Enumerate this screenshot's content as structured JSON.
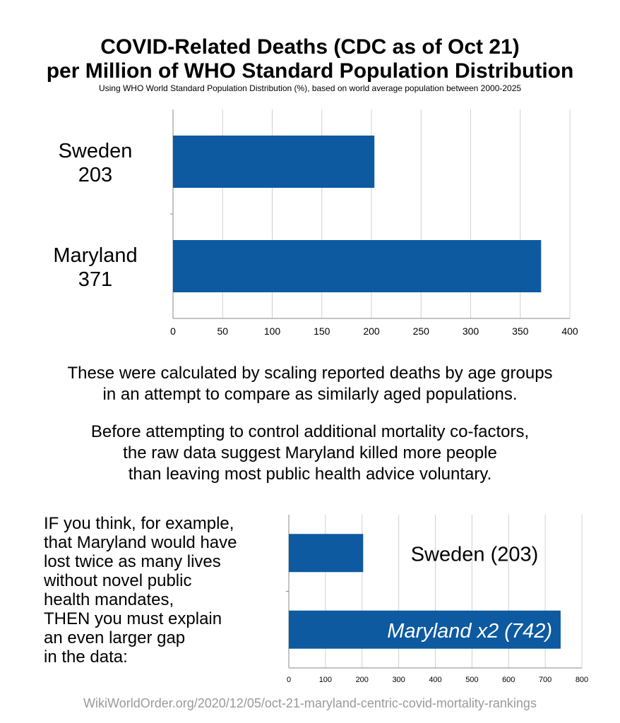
{
  "title_line1": "COVID-Related Deaths (CDC as of Oct 21)",
  "title_line2": "per Million of WHO Standard Population Distribution",
  "subtitle": "Using WHO World Standard Population Distribution (%), based on world average population between 2000-2025",
  "paragraph1": [
    "These were calculated by scaling reported deaths by age groups",
    "in an attempt to compare as similarly aged populations."
  ],
  "paragraph2": [
    "Before attempting to control additional mortality co-factors,",
    "the raw data suggest Maryland killed more people",
    "than leaving most public health advice voluntary."
  ],
  "left_note": [
    "IF you think, for example,",
    "that Maryland would have",
    "lost twice as many lives",
    "without novel public",
    "health mandates,",
    "THEN you must explain",
    "an even larger gap",
    "in the data:"
  ],
  "footer": "WikiWorldOrder.org/2020/12/05/oct-21-maryland-centric-covid-mortality-rankings",
  "colors": {
    "bar": "#0d5aa0",
    "grid": "#d0d0d0",
    "footer": "#9a9a9a"
  },
  "chart_data": [
    {
      "type": "bar",
      "orientation": "horizontal",
      "categories": [
        "Sweden",
        "Maryland"
      ],
      "category_labels": [
        [
          "Sweden",
          "203"
        ],
        [
          "Maryland",
          "371"
        ]
      ],
      "values": [
        203,
        371
      ],
      "xlim": [
        0,
        400
      ],
      "xticks": [
        "0",
        "50",
        "100",
        "150",
        "200",
        "250",
        "300",
        "350",
        "400"
      ],
      "grid": true
    },
    {
      "type": "bar",
      "orientation": "horizontal",
      "categories": [
        "Sweden",
        "Maryland x2"
      ],
      "bar_labels": [
        "Sweden   (203)",
        "Maryland x2    (742)"
      ],
      "values": [
        203,
        742
      ],
      "xlim": [
        0,
        800
      ],
      "xticks": [
        "0",
        "100",
        "200",
        "300",
        "400",
        "500",
        "600",
        "700",
        "800"
      ],
      "grid": true
    }
  ]
}
